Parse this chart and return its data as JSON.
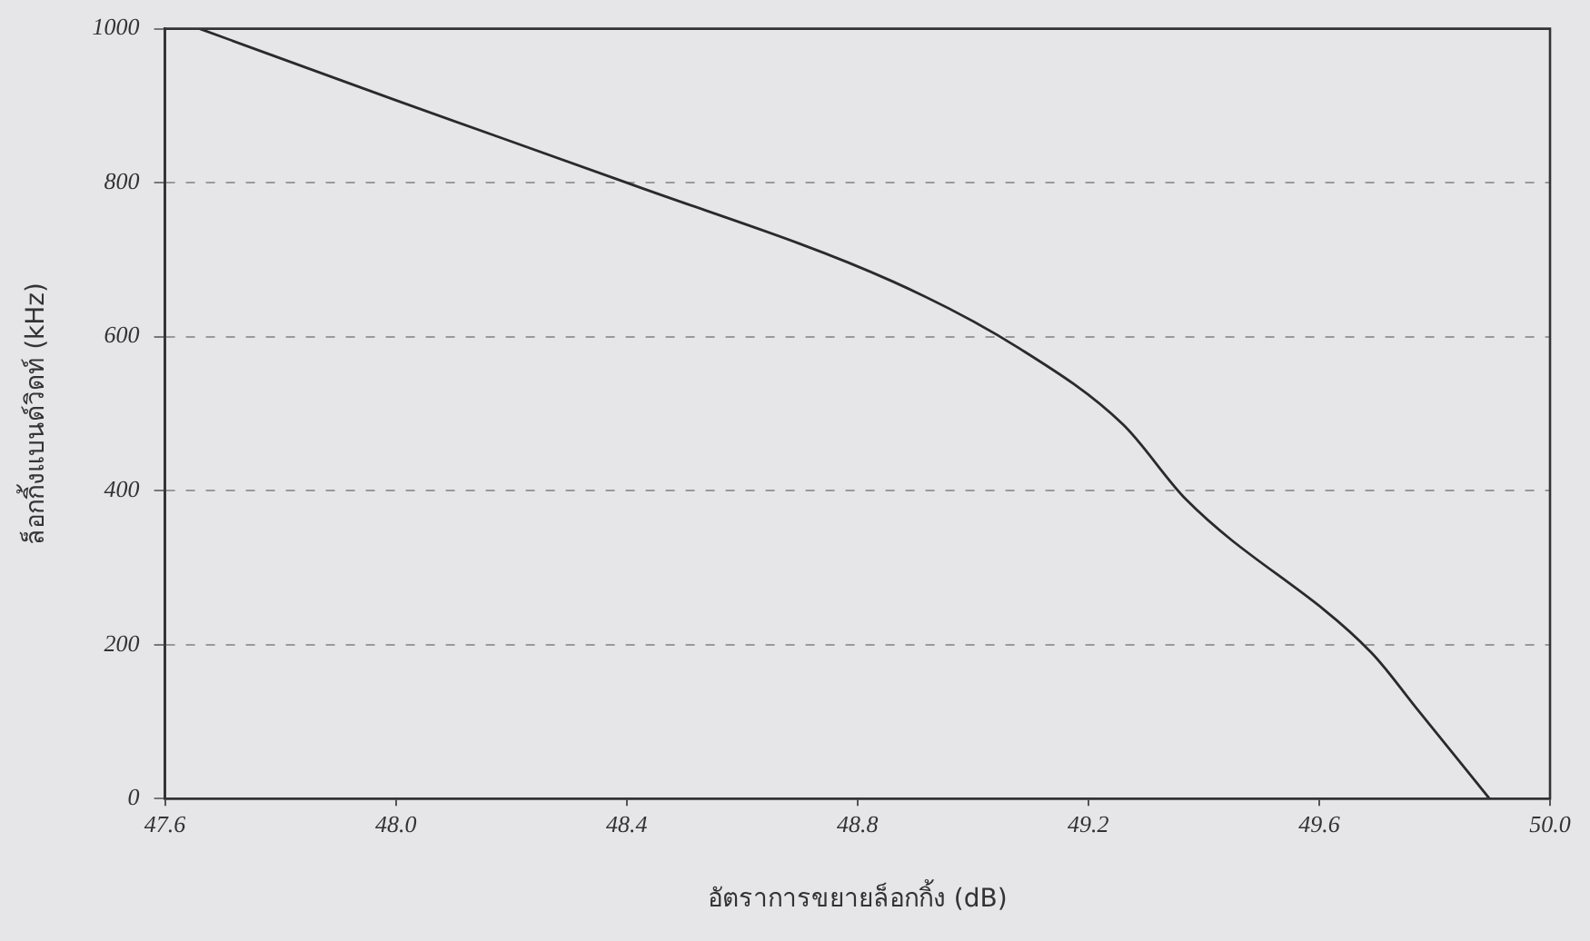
{
  "chart_data": {
    "type": "line",
    "xlabel": "อัตราการขยายล็อกกิ้ง (dB)",
    "ylabel": "ล็อกกิ้งแบนด์วิดท์ (kHz)",
    "series": [
      {
        "color": "#2a2a2a",
        "x": [
          47.66,
          48.0,
          48.4,
          48.86,
          49.08,
          49.26,
          49.37,
          49.69,
          49.77,
          49.895
        ],
        "values": [
          1000,
          907,
          800,
          672,
          585,
          486,
          388,
          190,
          116,
          0
        ]
      }
    ],
    "xlim": [
      47.6,
      50.0
    ],
    "xticks": [
      {
        "value": 47.6,
        "label": "47.6"
      },
      {
        "value": 48.0,
        "label": "48.0"
      },
      {
        "value": 48.4,
        "label": "48.4"
      },
      {
        "value": 48.8,
        "label": "48.8"
      },
      {
        "value": 49.2,
        "label": "49.2"
      },
      {
        "value": 49.6,
        "label": "49.6"
      },
      {
        "value": 50.0,
        "label": "50.0"
      }
    ],
    "ylim": [
      0,
      1000
    ],
    "yticks": [
      0,
      200,
      400,
      600,
      800,
      1000
    ],
    "grid": "y",
    "legend": false,
    "marker": "none",
    "line_style": "solid"
  }
}
